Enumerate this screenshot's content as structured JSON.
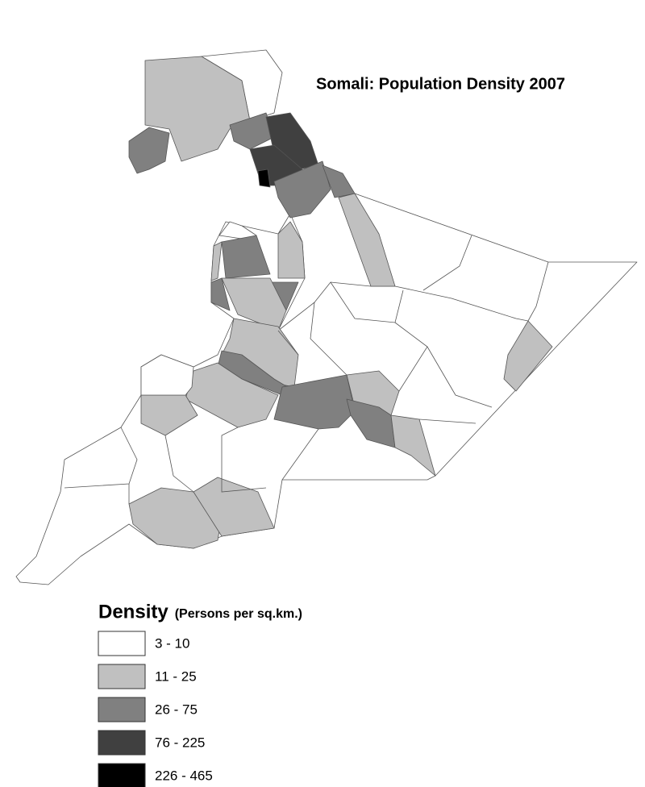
{
  "map": {
    "title": "Somali: Population Density 2007",
    "legend": {
      "title": "Density",
      "subtitle": "(Persons per sq.km.)",
      "items": [
        {
          "label": "3 - 10",
          "color": "#ffffff"
        },
        {
          "label": "11 - 25",
          "color": "#c0c0c0"
        },
        {
          "label": "26 - 75",
          "color": "#808080"
        },
        {
          "label": "76 - 225",
          "color": "#404040"
        },
        {
          "label": "226 - 465",
          "color": "#000000"
        }
      ]
    }
  }
}
